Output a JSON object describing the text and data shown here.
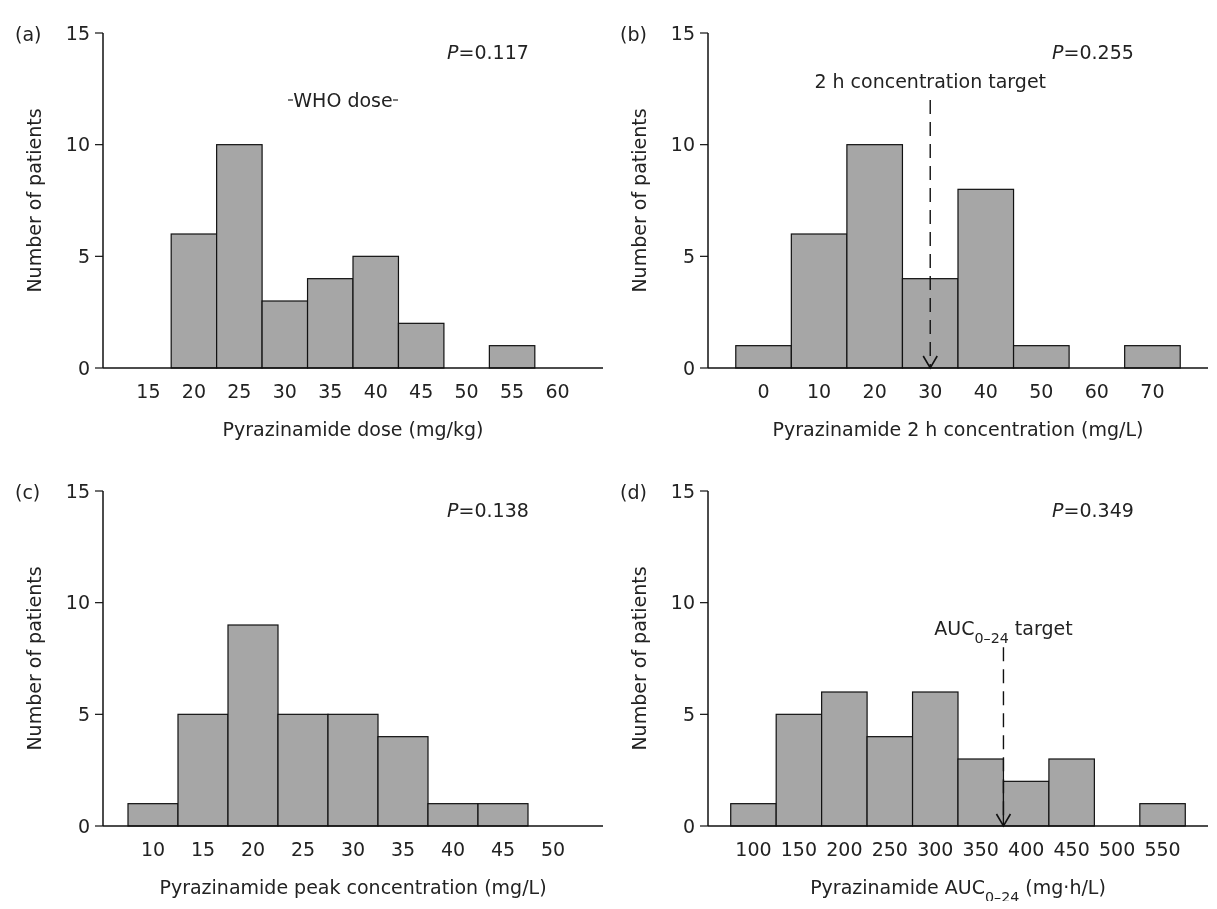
{
  "chart_data": [
    {
      "type": "histogram",
      "title": "(a)",
      "xlabel": "Pyrazinamide dose (mg/kg)",
      "ylabel": "Number of patients",
      "bins": [
        17.5,
        22.5,
        27.5,
        32.5,
        37.5,
        42.5,
        47.5,
        52.5,
        57.5
      ],
      "values": [
        6,
        10,
        3,
        4,
        5,
        2,
        0,
        1
      ],
      "color": "#a6a6a6",
      "xlim": [
        10,
        65
      ],
      "xticks": [
        15,
        20,
        25,
        30,
        35,
        40,
        45,
        50,
        55,
        60
      ],
      "ylim": [
        0,
        15
      ],
      "yticks": [
        0,
        5,
        10,
        15
      ],
      "annotations": [
        "P=0.117",
        "WHO dose"
      ]
    },
    {
      "type": "histogram",
      "title": "(b)",
      "xlabel": "Pyrazinamide 2 h concentration (mg/L)",
      "ylabel": "Number of patients",
      "bins": [
        -5,
        5,
        15,
        25,
        35,
        45,
        55,
        65,
        75
      ],
      "values": [
        1,
        6,
        10,
        4,
        8,
        1,
        0,
        1
      ],
      "color": "#a6a6a6",
      "xlim": [
        -10,
        80
      ],
      "xticks": [
        0,
        10,
        20,
        30,
        40,
        50,
        60,
        70
      ],
      "ylim": [
        0,
        15
      ],
      "yticks": [
        0,
        5,
        10,
        15
      ],
      "annotations": [
        "P=0.255"
      ],
      "ref_lines": [
        {
          "axis": "x",
          "value": 30,
          "label": "2 h concentration target",
          "line_style": "dashed"
        }
      ]
    },
    {
      "type": "histogram",
      "title": "(c)",
      "xlabel": "Pyrazinamide peak concentration (mg/L)",
      "ylabel": "Number of patients",
      "bins": [
        7.5,
        12.5,
        17.5,
        22.5,
        27.5,
        32.5,
        37.5,
        42.5,
        47.5
      ],
      "values": [
        1,
        5,
        9,
        5,
        5,
        4,
        1,
        1
      ],
      "color": "#a6a6a6",
      "xlim": [
        5,
        55
      ],
      "xticks": [
        10,
        15,
        20,
        25,
        30,
        35,
        40,
        45,
        50
      ],
      "ylim": [
        0,
        15
      ],
      "yticks": [
        0,
        5,
        10,
        15
      ],
      "annotations": [
        "P=0.138"
      ]
    },
    {
      "type": "histogram",
      "title": "(d)",
      "xlabel": "Pyrazinamide AUC$_{0–24}$ (mg·h/L)",
      "ylabel": "Number of patients",
      "bins": [
        75,
        125,
        175,
        225,
        275,
        325,
        375,
        425,
        475,
        525,
        575
      ],
      "values": [
        1,
        5,
        6,
        4,
        6,
        3,
        2,
        3,
        0,
        1
      ],
      "color": "#a6a6a6",
      "xlim": [
        50,
        600
      ],
      "xticks": [
        100,
        150,
        200,
        250,
        300,
        350,
        400,
        450,
        500,
        550
      ],
      "ylim": [
        0,
        15
      ],
      "yticks": [
        0,
        5,
        10,
        15
      ],
      "annotations": [
        "P=0.349"
      ],
      "ref_lines": [
        {
          "axis": "x",
          "value": 375,
          "label": "AUC$_{0–24}$ target",
          "line_style": "dashed"
        }
      ]
    }
  ]
}
